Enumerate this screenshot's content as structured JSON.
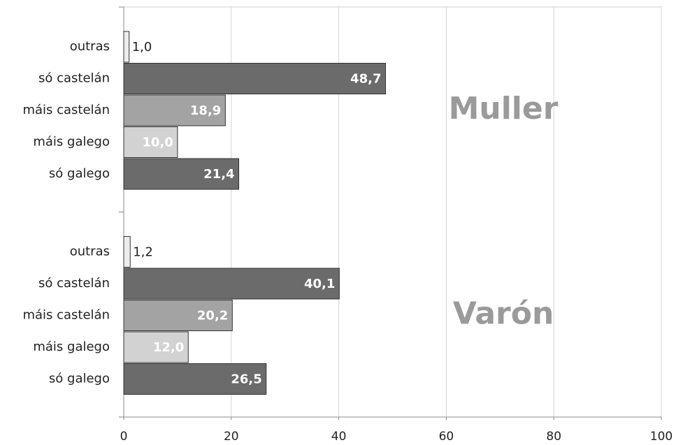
{
  "chart_data": {
    "type": "bar",
    "orientation": "horizontal",
    "colors": [
      "#ececec",
      "#6b6b6b",
      "#a3a3a3",
      "#d2d2d2",
      "#6b6b6b"
    ],
    "groups": [
      {
        "name": "Muller",
        "categories": [
          "outras",
          "só castelán",
          "máis castelán",
          "máis galego",
          "só galego"
        ],
        "values": [
          1.0,
          48.7,
          18.9,
          10.0,
          21.4
        ],
        "value_labels": [
          "1,0",
          "48,7",
          "18,9",
          "10,0",
          "21,4"
        ]
      },
      {
        "name": "Varón",
        "categories": [
          "outras",
          "só castelán",
          "máis castelán",
          "máis galego",
          "só galego"
        ],
        "values": [
          1.2,
          40.1,
          20.2,
          12.0,
          26.5
        ],
        "value_labels": [
          "1,2",
          "40,1",
          "20,2",
          "12,0",
          "26,5"
        ]
      }
    ],
    "xlim": [
      0,
      100
    ],
    "xticks": [
      0,
      20,
      40,
      60,
      80,
      100
    ],
    "grid": true
  }
}
